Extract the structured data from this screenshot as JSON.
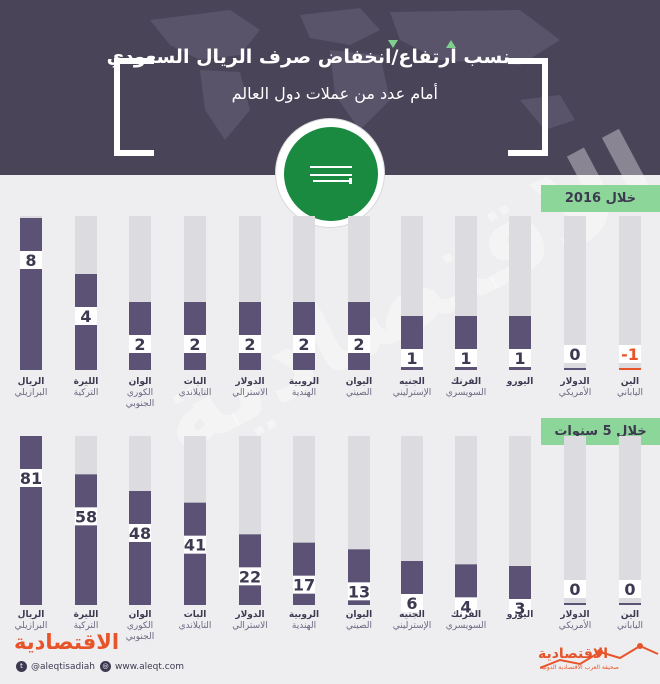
{
  "header": {
    "title_line1": "نسب ارتفاع/انخفاض صرف الريال السعودي",
    "title_line2": "أمام عدد من عملات دول العالم",
    "accent_color": "#8cd699",
    "bar_color": "#5c5275",
    "negative_color": "#e8542a"
  },
  "chart_data": [
    {
      "type": "bar",
      "title": "خلال 2016",
      "categories": [
        {
          "name": "الريال",
          "sub": "البرازيلي"
        },
        {
          "name": "الليرة",
          "sub": "التركية"
        },
        {
          "name": "الوان",
          "sub": "الكوري",
          "sub2": "الجنوبي"
        },
        {
          "name": "البات",
          "sub": "التايلاندي"
        },
        {
          "name": "الدولار",
          "sub": "الاسترالي"
        },
        {
          "name": "الروبية",
          "sub": "الهندية"
        },
        {
          "name": "اليوان",
          "sub": "الصيني"
        },
        {
          "name": "الجنيه",
          "sub": "الإسترليني"
        },
        {
          "name": "الفرنك",
          "sub": "السويسري"
        },
        {
          "name": "اليورو",
          "sub": ""
        },
        {
          "name": "الدولار",
          "sub": "الأمريكي"
        },
        {
          "name": "الين",
          "sub": "الياباني"
        }
      ],
      "values": [
        8,
        4,
        2,
        2,
        2,
        2,
        2,
        1,
        1,
        1,
        0,
        -1
      ],
      "labels": [
        "8",
        "4",
        "2",
        "2",
        "2",
        "2",
        "2",
        "1",
        "1",
        "1",
        "0",
        "-1"
      ]
    },
    {
      "type": "bar",
      "title": "خلال 5 سنوات",
      "categories": [
        {
          "name": "الريال",
          "sub": "البرازيلي"
        },
        {
          "name": "الليرة",
          "sub": "التركية"
        },
        {
          "name": "الوان",
          "sub": "الكوري",
          "sub2": "الجنوبي"
        },
        {
          "name": "البات",
          "sub": "التايلاندي"
        },
        {
          "name": "الدولار",
          "sub": "الاسترالي"
        },
        {
          "name": "الروبية",
          "sub": "الهندية"
        },
        {
          "name": "اليوان",
          "sub": "الصيني"
        },
        {
          "name": "الجنيه",
          "sub": "الإسترليني"
        },
        {
          "name": "الفرنك",
          "sub": "السويسري"
        },
        {
          "name": "اليورو",
          "sub": ""
        },
        {
          "name": "الدولار",
          "sub": "الأمريكي"
        },
        {
          "name": "الين",
          "sub": "الياباني"
        }
      ],
      "values": [
        81,
        58,
        48,
        41,
        22,
        17,
        13,
        6,
        4,
        3,
        0,
        0
      ],
      "labels": [
        "81",
        "58",
        "48",
        "41",
        "22",
        "17",
        "13",
        "6",
        "4",
        "3",
        "0",
        "0"
      ]
    }
  ],
  "footer": {
    "brand": "الاقتصادية",
    "twitter": "@aleqtisadiah",
    "website": "www.aleqt.com",
    "logo": "الاقتصادية",
    "logo_sub": "صحيفة العرب الاقتصادية الدولية",
    "twitter_icon": "twitter-icon",
    "globe_icon": "globe-icon"
  }
}
